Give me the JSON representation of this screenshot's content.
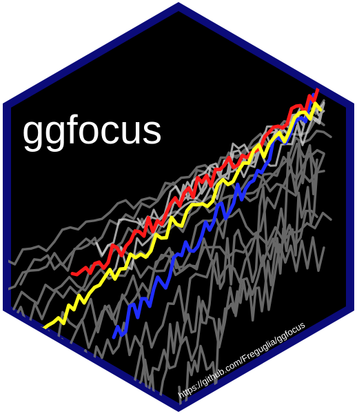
{
  "sticker": {
    "title": "ggfocus",
    "url": "https://github.com/Freguglia/ggfocus"
  },
  "colors": {
    "border": "#0b0b7a",
    "background": "#000000",
    "highlight_red": "#ff1a1a",
    "highlight_blue": "#1f2dff",
    "highlight_yellow": "#ffff1a",
    "grey_line": "#7a7a7a",
    "light_line": "#d8d8d8"
  },
  "icons": [
    "hexagon-sticker-shape",
    "line-plot-artwork"
  ]
}
